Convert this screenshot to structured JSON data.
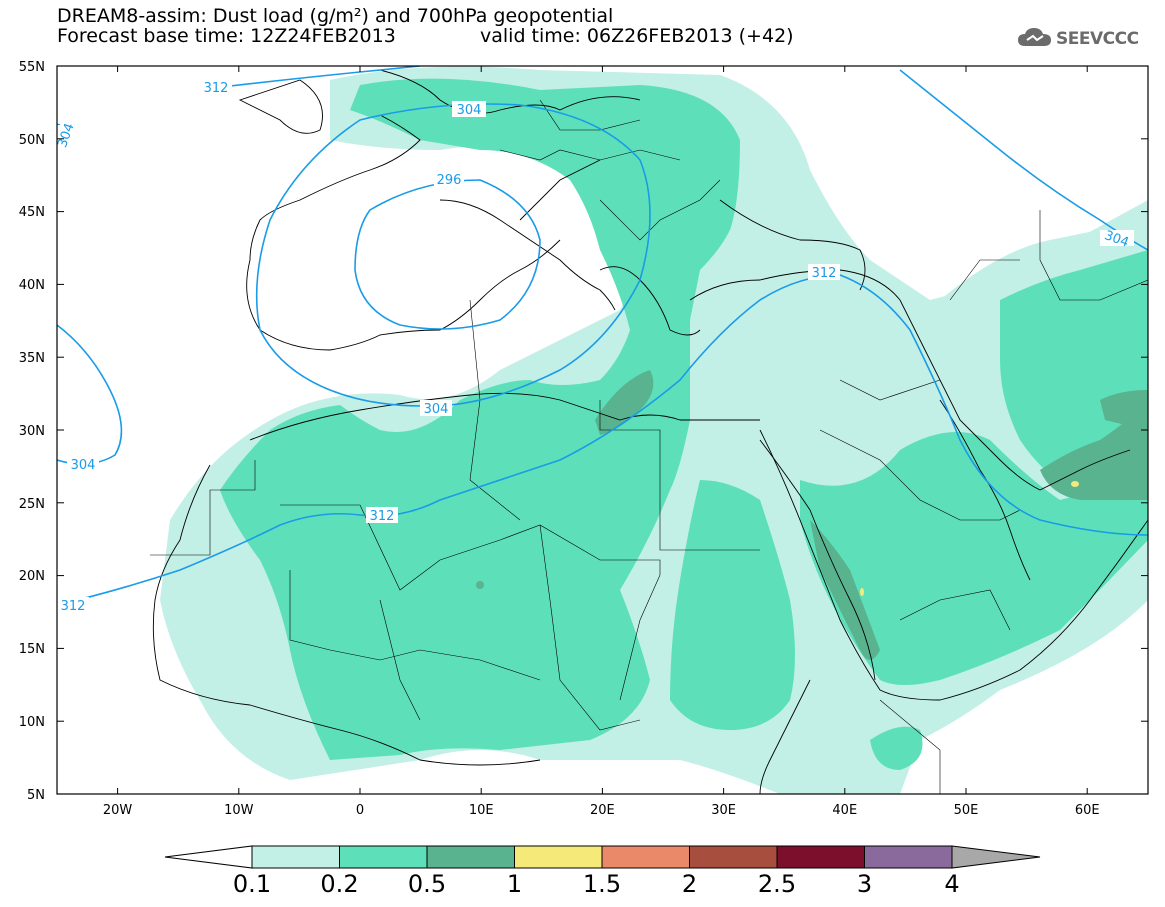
{
  "title": {
    "line1": "DREAM8-assim: Dust load (g/m²) and 700hPa geopotential",
    "line2": "Forecast base time: 12Z24FEB2013",
    "line2b": "valid time: 06Z26FEB2013 (+42)"
  },
  "logo": {
    "text": "SEEVCCC",
    "icon": "cloud-icon"
  },
  "map": {
    "lon_range": [
      -25,
      65
    ],
    "lat_range": [
      5,
      55
    ],
    "lat_labels": [
      "55N",
      "50N",
      "45N",
      "40N",
      "35N",
      "30N",
      "25N",
      "20N",
      "15N",
      "10N",
      "5N"
    ],
    "lon_labels": [
      "20W",
      "10W",
      "0",
      "10E",
      "20E",
      "30E",
      "40E",
      "50E",
      "60E"
    ],
    "contour_labels": [
      "312",
      "304",
      "304",
      "296",
      "304",
      "304",
      "312",
      "312",
      "304",
      "312"
    ]
  },
  "colorbar": {
    "labels": [
      "0.1",
      "0.2",
      "0.5",
      "1",
      "1.5",
      "2",
      "2.5",
      "3",
      "4"
    ],
    "colors": [
      "#c2efe6",
      "#5de0b9",
      "#5ab38f",
      "#f5e97a",
      "#e9896a",
      "#a84e3e",
      "#7b0f2c",
      "#8a6a9d"
    ],
    "under_color": "#ffffff",
    "over_color": "#a8a8a8"
  }
}
